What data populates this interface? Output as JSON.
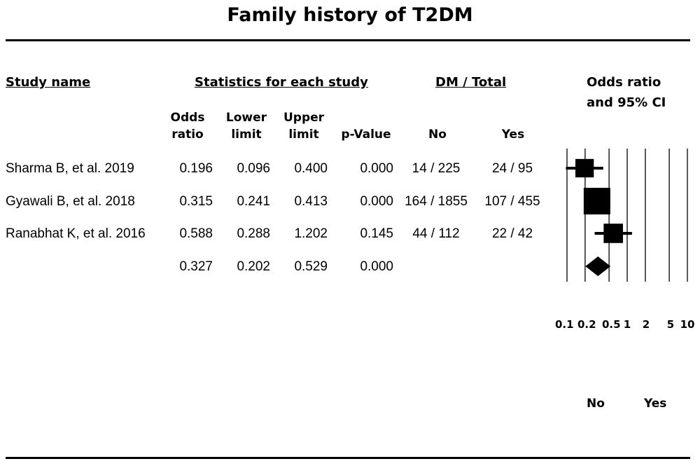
{
  "title": "Family history of T2DM",
  "headers": {
    "study": "Study name",
    "stats": "Statistics for each study",
    "dm": "DM / Total",
    "or_line1": "Odds ratio",
    "or_line2": "and 95%  CI"
  },
  "columns": {
    "or": [
      "Odds",
      "ratio"
    ],
    "lower": [
      "Lower",
      "limit"
    ],
    "upper": [
      "Upper",
      "limit"
    ],
    "p": "p-Value",
    "no": "No",
    "yes": "Yes"
  },
  "rows": [
    {
      "study": "Sharma B, et al. 2019",
      "or": "0.196",
      "lower": "0.096",
      "upper": "0.400",
      "p": "0.000",
      "no": "14 / 225",
      "yes": "24 / 95"
    },
    {
      "study": "Gyawali B, et al. 2018",
      "or": "0.315",
      "lower": "0.241",
      "upper": "0.413",
      "p": "0.000",
      "no": "164 / 1855",
      "yes": "107 / 455"
    },
    {
      "study": "Ranabhat K, et al. 2016",
      "or": "0.588",
      "lower": "0.288",
      "upper": "1.202",
      "p": "0.145",
      "no": "44 / 112",
      "yes": "22 / 42"
    },
    {
      "study": "",
      "or": "0.327",
      "lower": "0.202",
      "upper": "0.529",
      "p": "0.000",
      "no": "",
      "yes": ""
    }
  ],
  "axis": {
    "ticks": [
      "0.1",
      "0.2",
      "0.5",
      "1",
      "2",
      "5",
      "10"
    ]
  },
  "favours": {
    "left": "No",
    "right": "Yes"
  },
  "chart_data": {
    "type": "scatter",
    "title": "Family history of T2DM",
    "xscale": "log",
    "xlim": [
      0.1,
      10
    ],
    "xticks": [
      0.1,
      0.2,
      0.5,
      1,
      2,
      5,
      10
    ],
    "points": [
      {
        "study": "Sharma B, et al. 2019",
        "or": 0.196,
        "lower": 0.096,
        "upper": 0.4,
        "weight": 0.55
      },
      {
        "study": "Gyawali B, et al. 2018",
        "or": 0.315,
        "lower": 0.241,
        "upper": 0.413,
        "weight": 1.0
      },
      {
        "study": "Ranabhat K, et al. 2016",
        "or": 0.588,
        "lower": 0.288,
        "upper": 1.202,
        "weight": 0.6
      }
    ],
    "summary": {
      "or": 0.327,
      "lower": 0.202,
      "upper": 0.529
    },
    "gridlines": [
      0.1,
      0.2,
      0.5,
      1,
      2,
      5,
      10
    ]
  }
}
